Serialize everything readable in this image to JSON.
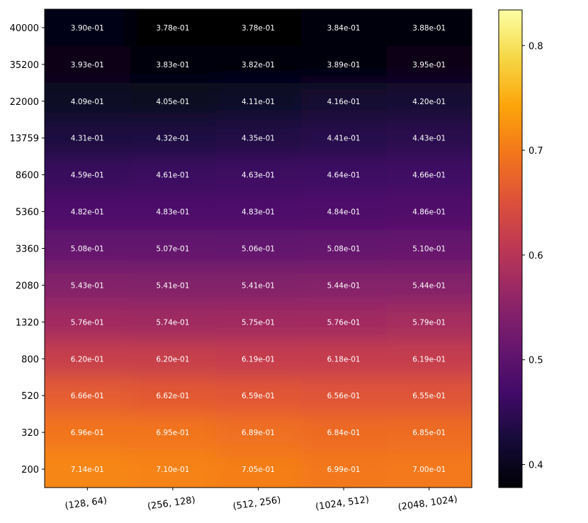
{
  "chart_data": {
    "type": "heatmap",
    "colormap": "inferno",
    "x_categories": [
      "(128, 64)",
      "(256, 128)",
      "(512, 256)",
      "(1024, 512)",
      "(2048, 1024)"
    ],
    "y_categories": [
      "40000",
      "35200",
      "22000",
      "13759",
      "8600",
      "5360",
      "3360",
      "2080",
      "1320",
      "800",
      "520",
      "320",
      "200"
    ],
    "values": [
      [
        0.39,
        0.378,
        0.378,
        0.384,
        0.388
      ],
      [
        0.393,
        0.383,
        0.382,
        0.389,
        0.395
      ],
      [
        0.409,
        0.405,
        0.411,
        0.416,
        0.42
      ],
      [
        0.431,
        0.432,
        0.435,
        0.441,
        0.443
      ],
      [
        0.459,
        0.461,
        0.463,
        0.464,
        0.466
      ],
      [
        0.482,
        0.483,
        0.483,
        0.484,
        0.486
      ],
      [
        0.508,
        0.507,
        0.506,
        0.508,
        0.51
      ],
      [
        0.543,
        0.541,
        0.541,
        0.544,
        0.544
      ],
      [
        0.576,
        0.574,
        0.575,
        0.576,
        0.579
      ],
      [
        0.62,
        0.62,
        0.619,
        0.618,
        0.619
      ],
      [
        0.666,
        0.662,
        0.659,
        0.656,
        0.655
      ],
      [
        0.696,
        0.695,
        0.689,
        0.684,
        0.685
      ],
      [
        0.714,
        0.71,
        0.705,
        0.699,
        0.7
      ]
    ],
    "cell_labels": [
      [
        "3.90e-01",
        "3.78e-01",
        "3.78e-01",
        "3.84e-01",
        "3.88e-01"
      ],
      [
        "3.93e-01",
        "3.83e-01",
        "3.82e-01",
        "3.89e-01",
        "3.95e-01"
      ],
      [
        "4.09e-01",
        "4.05e-01",
        "4.11e-01",
        "4.16e-01",
        "4.20e-01"
      ],
      [
        "4.31e-01",
        "4.32e-01",
        "4.35e-01",
        "4.41e-01",
        "4.43e-01"
      ],
      [
        "4.59e-01",
        "4.61e-01",
        "4.63e-01",
        "4.64e-01",
        "4.66e-01"
      ],
      [
        "4.82e-01",
        "4.83e-01",
        "4.83e-01",
        "4.84e-01",
        "4.86e-01"
      ],
      [
        "5.08e-01",
        "5.07e-01",
        "5.06e-01",
        "5.08e-01",
        "5.10e-01"
      ],
      [
        "5.43e-01",
        "5.41e-01",
        "5.41e-01",
        "5.44e-01",
        "5.44e-01"
      ],
      [
        "5.76e-01",
        "5.74e-01",
        "5.75e-01",
        "5.76e-01",
        "5.79e-01"
      ],
      [
        "6.20e-01",
        "6.20e-01",
        "6.19e-01",
        "6.18e-01",
        "6.19e-01"
      ],
      [
        "6.66e-01",
        "6.62e-01",
        "6.59e-01",
        "6.56e-01",
        "6.55e-01"
      ],
      [
        "6.96e-01",
        "6.95e-01",
        "6.89e-01",
        "6.84e-01",
        "6.85e-01"
      ],
      [
        "7.14e-01",
        "7.10e-01",
        "7.05e-01",
        "6.99e-01",
        "7.00e-01"
      ]
    ],
    "colorbar": {
      "range": [
        0.378,
        0.834
      ],
      "ticks": [
        0.4,
        0.5,
        0.6,
        0.7,
        0.8
      ],
      "tick_labels": [
        "0.4",
        "0.5",
        "0.6",
        "0.7",
        "0.8"
      ]
    },
    "title": "",
    "xlabel": "",
    "ylabel": ""
  }
}
